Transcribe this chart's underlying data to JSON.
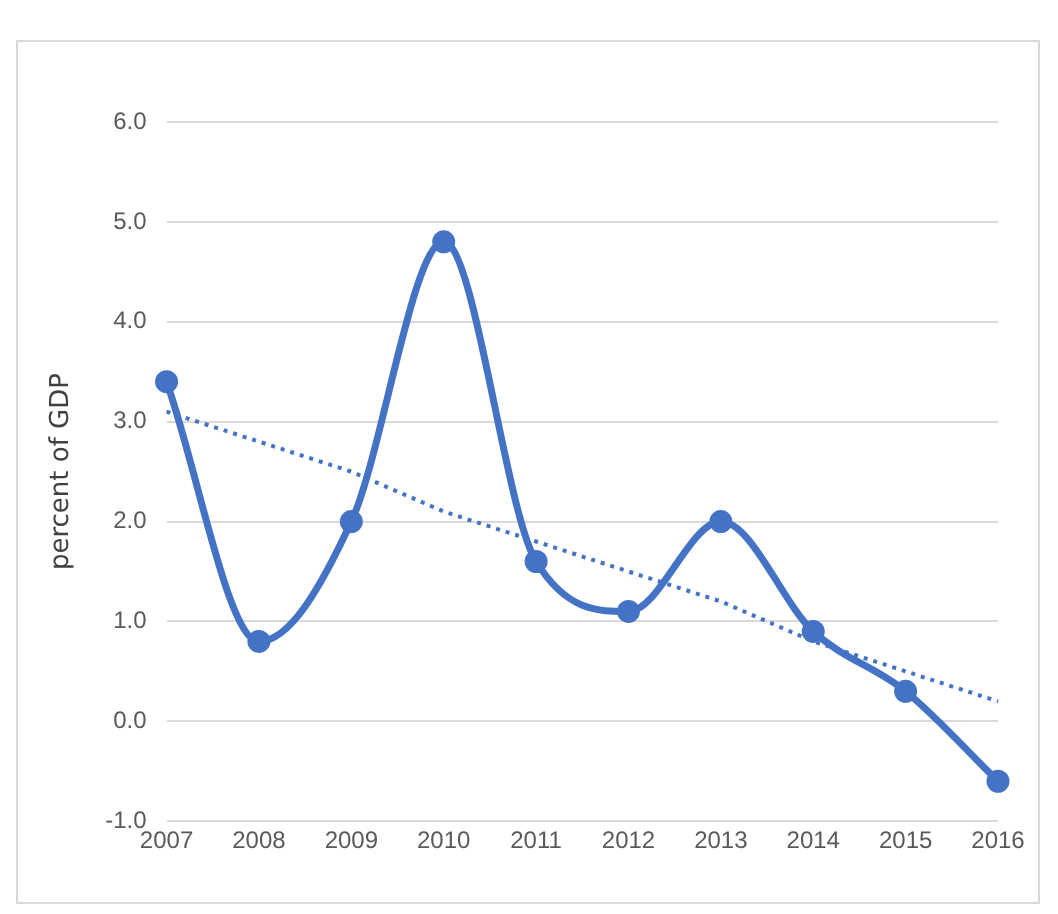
{
  "chart_data": {
    "type": "line",
    "ylabel": "percent of GDP",
    "categories": [
      "2007",
      "2008",
      "2009",
      "2010",
      "2011",
      "2012",
      "2013",
      "2014",
      "2015",
      "2016"
    ],
    "series": [
      {
        "color": "#4472c4",
        "values": [
          3.4,
          0.8,
          2.0,
          4.8,
          1.6,
          1.1,
          2.0,
          0.9,
          0.3,
          -0.6
        ],
        "marker": "circle",
        "line_style": "solid"
      },
      {
        "type": "line",
        "color": "#4472c4",
        "values": [
          3.1,
          2.8,
          2.5,
          2.1,
          1.8,
          1.5,
          1.2,
          0.8,
          0.5,
          0.2
        ],
        "marker": "none",
        "line_style": "dotted"
      }
    ],
    "ylim": [
      -1,
      6
    ],
    "yticks": [
      {
        "value": -1,
        "label": "-1.0"
      },
      {
        "value": 0,
        "label": "0.0"
      },
      {
        "value": 1,
        "label": "1.0"
      },
      {
        "value": 2,
        "label": "2.0"
      },
      {
        "value": 3,
        "label": "3.0"
      },
      {
        "value": 4,
        "label": "4.0"
      },
      {
        "value": 5,
        "label": "5.0"
      },
      {
        "value": 6,
        "label": "6.0"
      }
    ],
    "grid": "y",
    "legend": false
  }
}
